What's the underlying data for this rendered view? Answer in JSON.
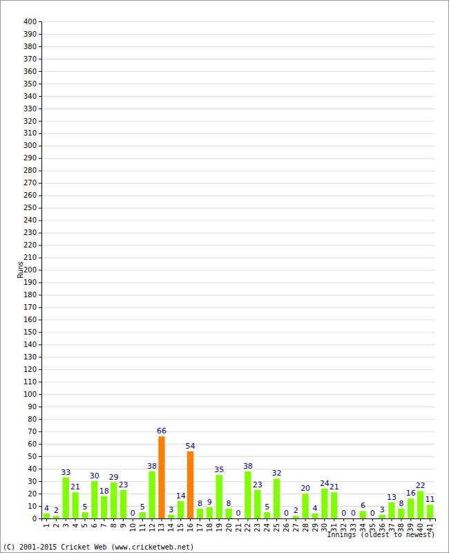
{
  "chart_data": {
    "type": "bar",
    "x_label": "Innings (oldest to newest)",
    "y_label": "Runs",
    "categories": [
      "1",
      "2",
      "3",
      "4",
      "5",
      "6",
      "7",
      "8",
      "9",
      "10",
      "11",
      "12",
      "13",
      "14",
      "15",
      "16",
      "17",
      "18",
      "19",
      "20",
      "21",
      "22",
      "23",
      "24",
      "25",
      "26",
      "27",
      "28",
      "29",
      "30",
      "31",
      "32",
      "33",
      "34",
      "35",
      "36",
      "37",
      "38",
      "39",
      "40",
      "41"
    ],
    "values": [
      4,
      2,
      33,
      21,
      5,
      30,
      18,
      29,
      23,
      0,
      5,
      38,
      66,
      3,
      14,
      54,
      8,
      9,
      35,
      8,
      0,
      38,
      23,
      5,
      32,
      0,
      2,
      20,
      4,
      24,
      21,
      0,
      0,
      6,
      0,
      3,
      13,
      8,
      16,
      22,
      11
    ],
    "colors": [
      "#80ff00",
      "#80ff00",
      "#80ff00",
      "#80ff00",
      "#80ff00",
      "#80ff00",
      "#80ff00",
      "#80ff00",
      "#80ff00",
      "#80ff00",
      "#80ff00",
      "#80ff00",
      "#ff8000",
      "#80ff00",
      "#80ff00",
      "#ff8000",
      "#80ff00",
      "#80ff00",
      "#80ff00",
      "#80ff00",
      "#80ff00",
      "#80ff00",
      "#80ff00",
      "#80ff00",
      "#80ff00",
      "#80ff00",
      "#80ff00",
      "#80ff00",
      "#80ff00",
      "#80ff00",
      "#80ff00",
      "#80ff00",
      "#80ff00",
      "#80ff00",
      "#80ff00",
      "#80ff00",
      "#80ff00",
      "#80ff00",
      "#80ff00",
      "#80ff00",
      "#80ff00"
    ],
    "ylim": [
      0,
      400
    ],
    "yticks": [
      0,
      10,
      20,
      30,
      40,
      50,
      60,
      70,
      80,
      90,
      100,
      110,
      120,
      130,
      140,
      150,
      160,
      170,
      180,
      190,
      200,
      210,
      220,
      230,
      240,
      250,
      260,
      270,
      280,
      290,
      300,
      310,
      320,
      330,
      340,
      350,
      360,
      370,
      380,
      390,
      400
    ],
    "grid": true,
    "data_labels": true,
    "annotations": [
      "(C) 2001-2015 Cricket Web (www.cricketweb.net)"
    ]
  }
}
